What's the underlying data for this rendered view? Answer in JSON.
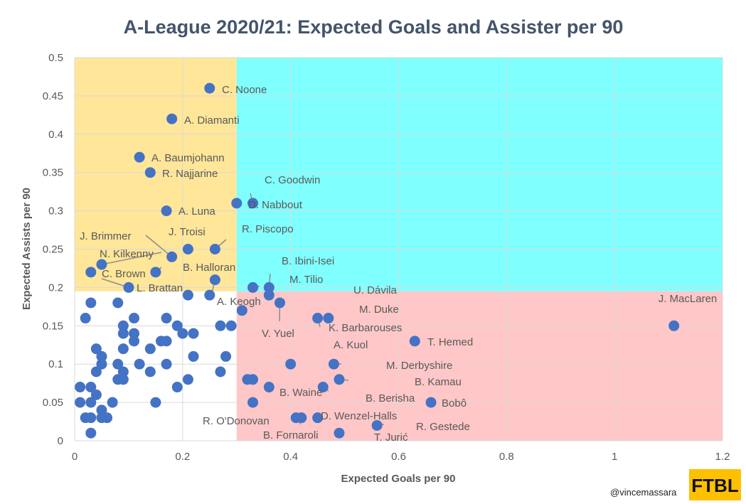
{
  "chart_data": {
    "type": "scatter",
    "title": "A-League 2020/21: Expected Goals and Assister per 90",
    "xlabel": "Expected Goals per 90",
    "ylabel": "Expected Assists per 90",
    "xlim": [
      0,
      1.2
    ],
    "ylim": [
      0,
      0.5
    ],
    "xticks": [
      "0",
      "0.2",
      "0.4",
      "0.6",
      "0.8",
      "1",
      "1.2"
    ],
    "yticks": [
      "0",
      "0.05",
      "0.1",
      "0.15",
      "0.2",
      "0.25",
      "0.3",
      "0.35",
      "0.4",
      "0.45",
      "0.5"
    ],
    "grid": true,
    "quadrant_split": {
      "x": 0.3,
      "y": 0.195
    },
    "quadrant_colors": {
      "top_left": "#ffe699",
      "top_right": "#80ffff",
      "bottom_right": "#ffc7c7",
      "bottom_left": "#ffffff"
    },
    "point_color": "#4472c4",
    "points": [
      {
        "x": 0.25,
        "y": 0.46,
        "label": "C. Noone"
      },
      {
        "x": 0.18,
        "y": 0.42,
        "label": "A. Diamanti"
      },
      {
        "x": 0.12,
        "y": 0.37,
        "label": "A. Baumjohann"
      },
      {
        "x": 0.14,
        "y": 0.35,
        "label": "R. Najjarine"
      },
      {
        "x": 0.33,
        "y": 0.31,
        "label": "C. Goodwin"
      },
      {
        "x": 0.3,
        "y": 0.31,
        "label": "D. Nabbout"
      },
      {
        "x": 0.17,
        "y": 0.3,
        "label": "A. Luna"
      },
      {
        "x": 0.21,
        "y": 0.25,
        "label": "J. Troisi"
      },
      {
        "x": 0.26,
        "y": 0.25,
        "label": "R. Piscopo"
      },
      {
        "x": 0.18,
        "y": 0.24,
        "label": "J. Brimmer"
      },
      {
        "x": 0.05,
        "y": 0.23,
        "label": "N. Kilkenny"
      },
      {
        "x": 0.15,
        "y": 0.22,
        "label": "B. Halloran"
      },
      {
        "x": 0.03,
        "y": 0.22,
        "label": "C. Brown"
      },
      {
        "x": 0.26,
        "y": 0.21,
        "label": "A. Keogh"
      },
      {
        "x": 0.1,
        "y": 0.2,
        "label": "L. Brattan"
      },
      {
        "x": 0.36,
        "y": 0.2,
        "label": "B. Ibini-Isei"
      },
      {
        "x": 0.33,
        "y": 0.2,
        "label": "M. Tilio"
      },
      {
        "x": 0.36,
        "y": 0.19,
        "label": "U. Dávila"
      },
      {
        "x": 0.38,
        "y": 0.18,
        "label": "V. Yuel"
      },
      {
        "x": 1.11,
        "y": 0.15,
        "label": "J. MacLaren"
      },
      {
        "x": 0.47,
        "y": 0.16,
        "label": "M. Duke"
      },
      {
        "x": 0.45,
        "y": 0.16,
        "label": "K. Barbarouses"
      },
      {
        "x": 0.63,
        "y": 0.13,
        "label": "T. Hemed"
      },
      {
        "x": 0.4,
        "y": 0.1,
        "label": "A. Kuol"
      },
      {
        "x": 0.48,
        "y": 0.1,
        "label": "M. Derbyshire"
      },
      {
        "x": 0.49,
        "y": 0.08,
        "label": "B. Kamau"
      },
      {
        "x": 0.46,
        "y": 0.07,
        "label": "B. Berisha"
      },
      {
        "x": 0.36,
        "y": 0.07,
        "label": "B. Waine"
      },
      {
        "x": 0.66,
        "y": 0.05,
        "label": "Bobô"
      },
      {
        "x": 0.45,
        "y": 0.03,
        "label": "D. Wenzel-Halls"
      },
      {
        "x": 0.41,
        "y": 0.03,
        "label": "R. O'Donovan"
      },
      {
        "x": 0.56,
        "y": 0.02,
        "label": "R. Gestede"
      },
      {
        "x": 0.42,
        "y": 0.03,
        "label": "B. Fornaroli"
      },
      {
        "x": 0.49,
        "y": 0.01,
        "label": "T. Jurić"
      },
      {
        "x": 0.31,
        "y": 0.17
      },
      {
        "x": 0.25,
        "y": 0.19
      },
      {
        "x": 0.21,
        "y": 0.19
      },
      {
        "x": 0.32,
        "y": 0.08
      },
      {
        "x": 0.33,
        "y": 0.08
      },
      {
        "x": 0.33,
        "y": 0.05
      },
      {
        "x": 0.29,
        "y": 0.15
      },
      {
        "x": 0.27,
        "y": 0.15
      },
      {
        "x": 0.28,
        "y": 0.11
      },
      {
        "x": 0.27,
        "y": 0.09
      },
      {
        "x": 0.03,
        "y": 0.18
      },
      {
        "x": 0.08,
        "y": 0.18
      },
      {
        "x": 0.02,
        "y": 0.16
      },
      {
        "x": 0.11,
        "y": 0.16
      },
      {
        "x": 0.17,
        "y": 0.16
      },
      {
        "x": 0.09,
        "y": 0.15
      },
      {
        "x": 0.19,
        "y": 0.15
      },
      {
        "x": 0.09,
        "y": 0.14
      },
      {
        "x": 0.11,
        "y": 0.14
      },
      {
        "x": 0.2,
        "y": 0.14
      },
      {
        "x": 0.22,
        "y": 0.14
      },
      {
        "x": 0.11,
        "y": 0.13
      },
      {
        "x": 0.16,
        "y": 0.13
      },
      {
        "x": 0.17,
        "y": 0.13
      },
      {
        "x": 0.04,
        "y": 0.12
      },
      {
        "x": 0.09,
        "y": 0.12
      },
      {
        "x": 0.14,
        "y": 0.12
      },
      {
        "x": 0.05,
        "y": 0.11
      },
      {
        "x": 0.22,
        "y": 0.11
      },
      {
        "x": 0.05,
        "y": 0.1
      },
      {
        "x": 0.08,
        "y": 0.1
      },
      {
        "x": 0.12,
        "y": 0.1
      },
      {
        "x": 0.17,
        "y": 0.1
      },
      {
        "x": 0.04,
        "y": 0.09
      },
      {
        "x": 0.09,
        "y": 0.09
      },
      {
        "x": 0.14,
        "y": 0.09
      },
      {
        "x": 0.08,
        "y": 0.08
      },
      {
        "x": 0.09,
        "y": 0.08
      },
      {
        "x": 0.21,
        "y": 0.08
      },
      {
        "x": 0.01,
        "y": 0.07
      },
      {
        "x": 0.03,
        "y": 0.07
      },
      {
        "x": 0.19,
        "y": 0.07
      },
      {
        "x": 0.04,
        "y": 0.06
      },
      {
        "x": 0.01,
        "y": 0.05
      },
      {
        "x": 0.03,
        "y": 0.05
      },
      {
        "x": 0.07,
        "y": 0.05
      },
      {
        "x": 0.15,
        "y": 0.05
      },
      {
        "x": 0.05,
        "y": 0.04
      },
      {
        "x": 0.02,
        "y": 0.03
      },
      {
        "x": 0.03,
        "y": 0.03
      },
      {
        "x": 0.05,
        "y": 0.03
      },
      {
        "x": 0.06,
        "y": 0.03
      },
      {
        "x": 0.03,
        "y": 0.01
      }
    ]
  },
  "footer": {
    "credit": "@vincemassara",
    "logo_text": "FTBL",
    "logo_color": "#ffc000"
  }
}
